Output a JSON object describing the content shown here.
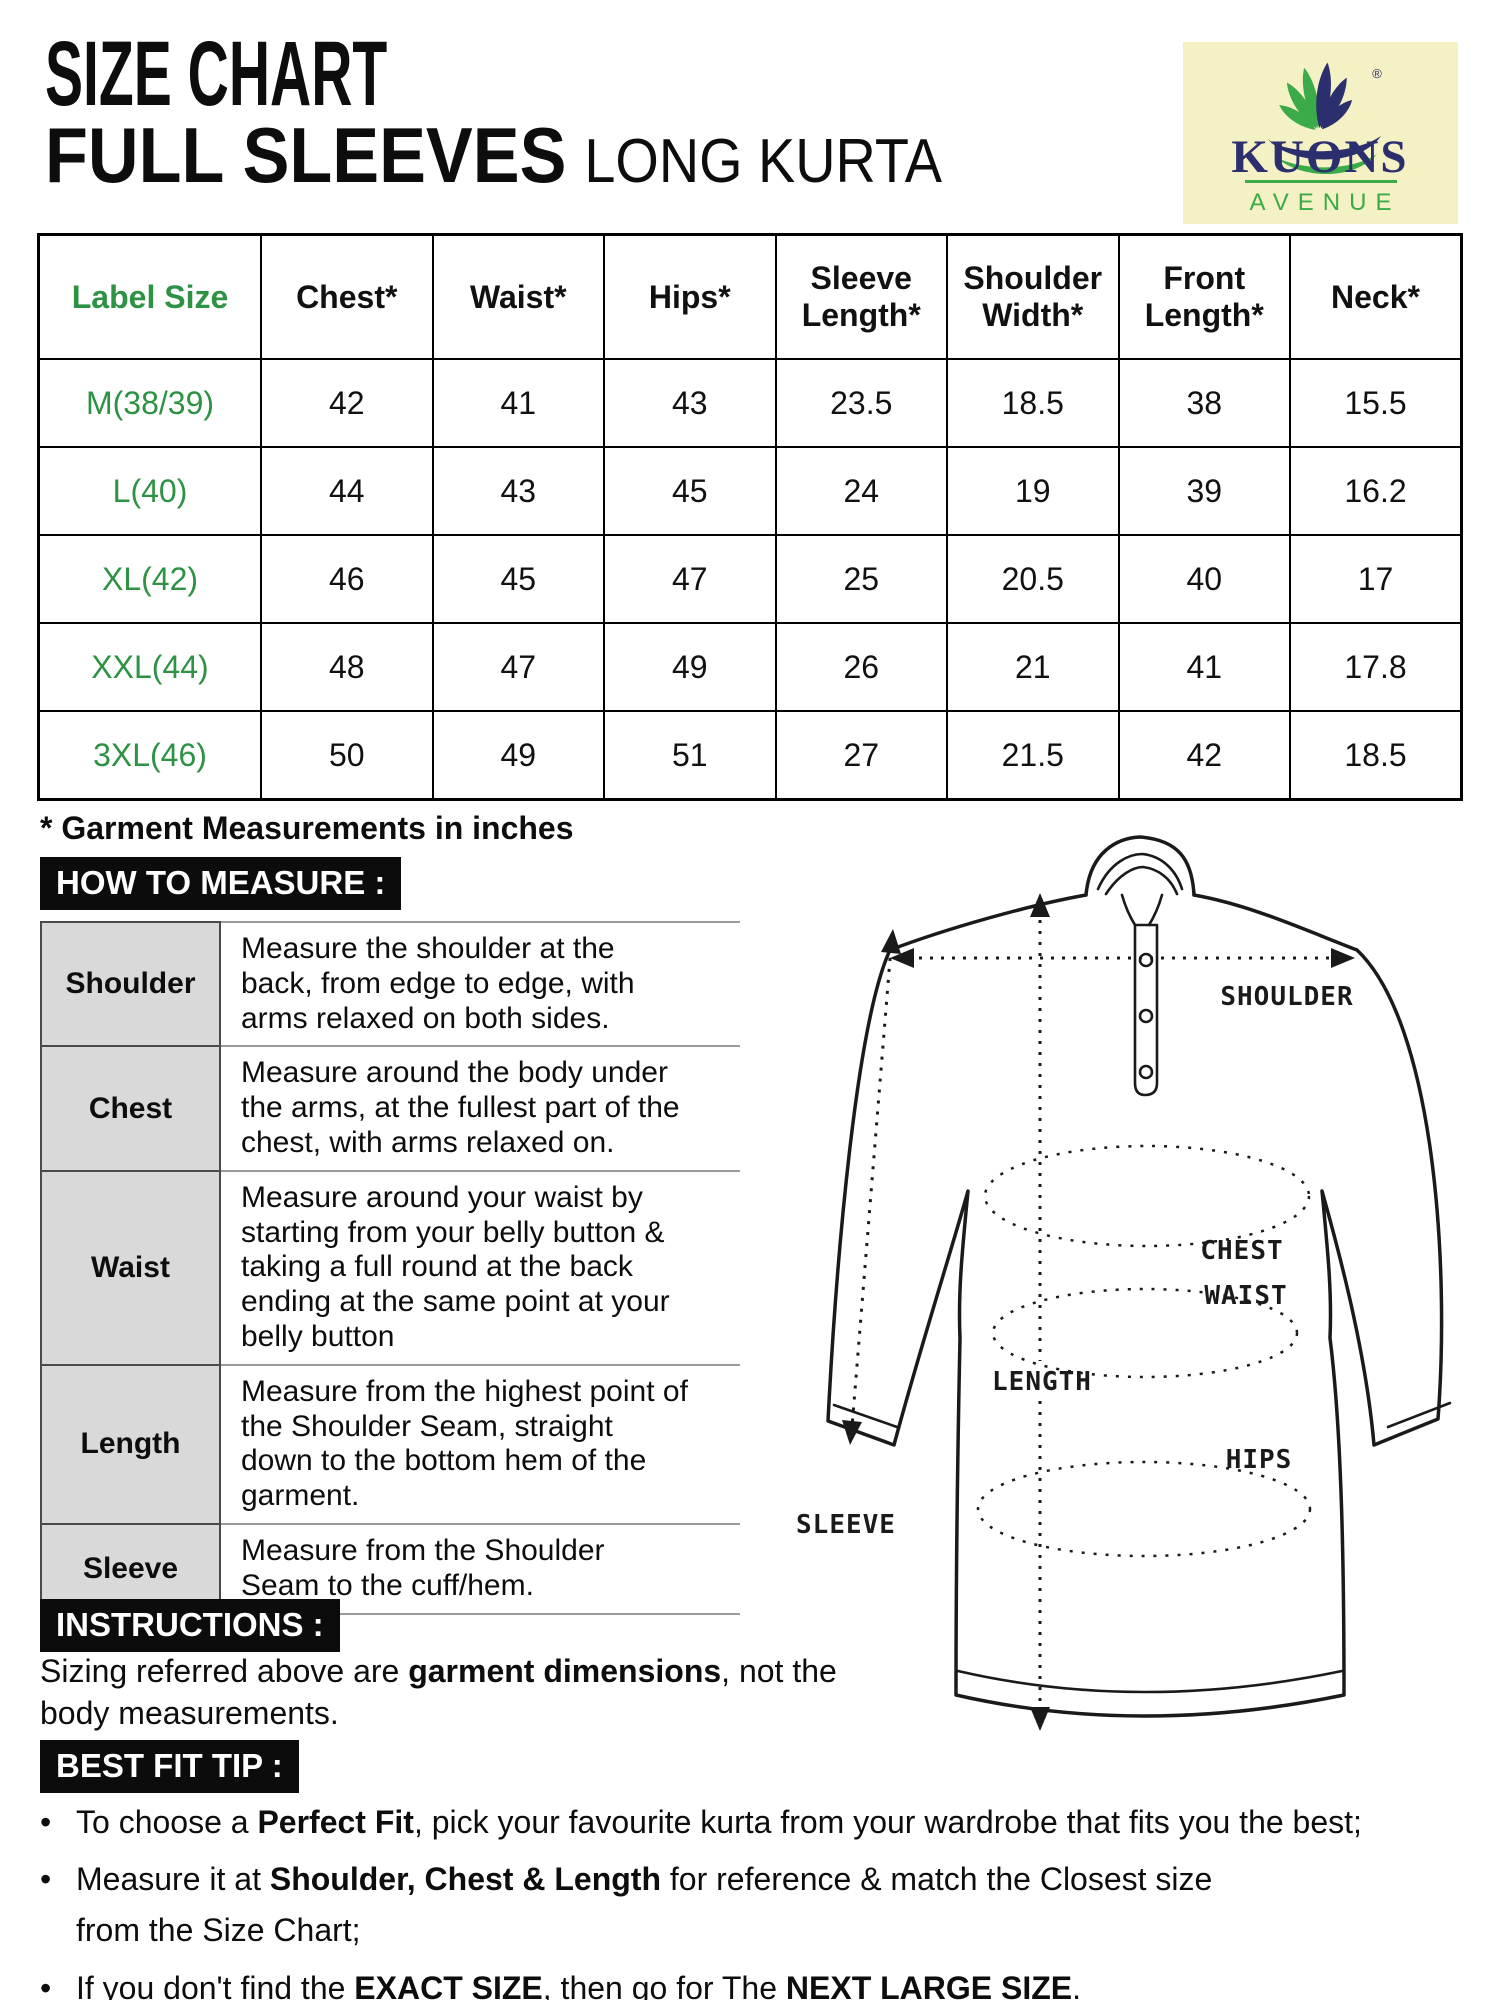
{
  "header": {
    "title_line1": "SIZE CHART",
    "title_line2_main": "FULL SLEEVES",
    "title_line2_sub": "LONG KURTA"
  },
  "logo": {
    "brand": "KUONS",
    "sub": "AVENUE",
    "registered_mark": "®",
    "colors": {
      "background": "#F4F1C4",
      "navy": "#2B2F6E",
      "green": "#3BAA49"
    }
  },
  "size_table": {
    "columns": [
      "Label Size",
      "Chest*",
      "Waist*",
      "Hips*",
      "Sleeve Length*",
      "Shoulder Width*",
      "Front Length*",
      "Neck*"
    ],
    "rows": [
      {
        "label": "M(38/39)",
        "values": [
          "42",
          "41",
          "43",
          "23.5",
          "18.5",
          "38",
          "15.5"
        ]
      },
      {
        "label": "L(40)",
        "values": [
          "44",
          "43",
          "45",
          "24",
          "19",
          "39",
          "16.2"
        ]
      },
      {
        "label": "XL(42)",
        "values": [
          "46",
          "45",
          "47",
          "25",
          "20.5",
          "40",
          "17"
        ]
      },
      {
        "label": "XXL(44)",
        "values": [
          "48",
          "47",
          "49",
          "26",
          "21",
          "41",
          "17.8"
        ]
      },
      {
        "label": "3XL(46)",
        "values": [
          "50",
          "49",
          "51",
          "27",
          "21.5",
          "42",
          "18.5"
        ]
      }
    ],
    "footnote": "* Garment Measurements in inches",
    "accent_green": "#2E9245"
  },
  "how_to_measure": {
    "heading": "HOW TO MEASURE :",
    "rows": [
      {
        "term": "Shoulder",
        "description": "Measure the shoulder at the back, from edge to edge, with arms relaxed on both sides."
      },
      {
        "term": "Chest",
        "description": "Measure around the body under the arms, at the fullest part of the chest, with arms relaxed on."
      },
      {
        "term": "Waist",
        "description": "Measure around your waist by starting from your belly button & taking a full round at the back ending at the same point at your belly button"
      },
      {
        "term": "Length",
        "description": "Measure from the highest point of the Shoulder Seam, straight down to the bottom hem of the garment."
      },
      {
        "term": "Sleeve",
        "description": "Measure from the Shoulder Seam to the cuff/hem."
      }
    ]
  },
  "diagram": {
    "labels": {
      "shoulder": "SHOULDER",
      "chest": "CHEST",
      "waist": "WAIST",
      "length": "LENGTH",
      "hips": "HIPS",
      "sleeve": "SLEEVE"
    }
  },
  "instructions": {
    "heading": "INSTRUCTIONS :",
    "body_segments": [
      {
        "text": "Sizing referred above are ",
        "bold": false
      },
      {
        "text": "garment dimensions",
        "bold": true
      },
      {
        "text": ", not the body measurements.",
        "bold": false
      }
    ]
  },
  "best_fit_tip": {
    "heading": "BEST FIT TIP :",
    "bullet_char": "•",
    "bullets": [
      {
        "segments": [
          {
            "text": "To choose a ",
            "bold": false
          },
          {
            "text": "Perfect Fit",
            "bold": true
          },
          {
            "text": ", pick your favourite kurta from your wardrobe that fits you the best;",
            "bold": false
          }
        ]
      },
      {
        "segments": [
          {
            "text": "Measure it at ",
            "bold": false
          },
          {
            "text": "Shoulder, Chest & Length",
            "bold": true
          },
          {
            "text": " for reference & match the Closest size\nfrom the Size Chart;",
            "bold": false
          }
        ]
      },
      {
        "segments": [
          {
            "text": "If you don't find the ",
            "bold": false
          },
          {
            "text": "EXACT SIZE",
            "bold": true
          },
          {
            "text": ", then go for The ",
            "bold": false
          },
          {
            "text": "NEXT LARGE SIZE",
            "bold": true
          },
          {
            "text": ".",
            "bold": false
          }
        ]
      }
    ]
  }
}
